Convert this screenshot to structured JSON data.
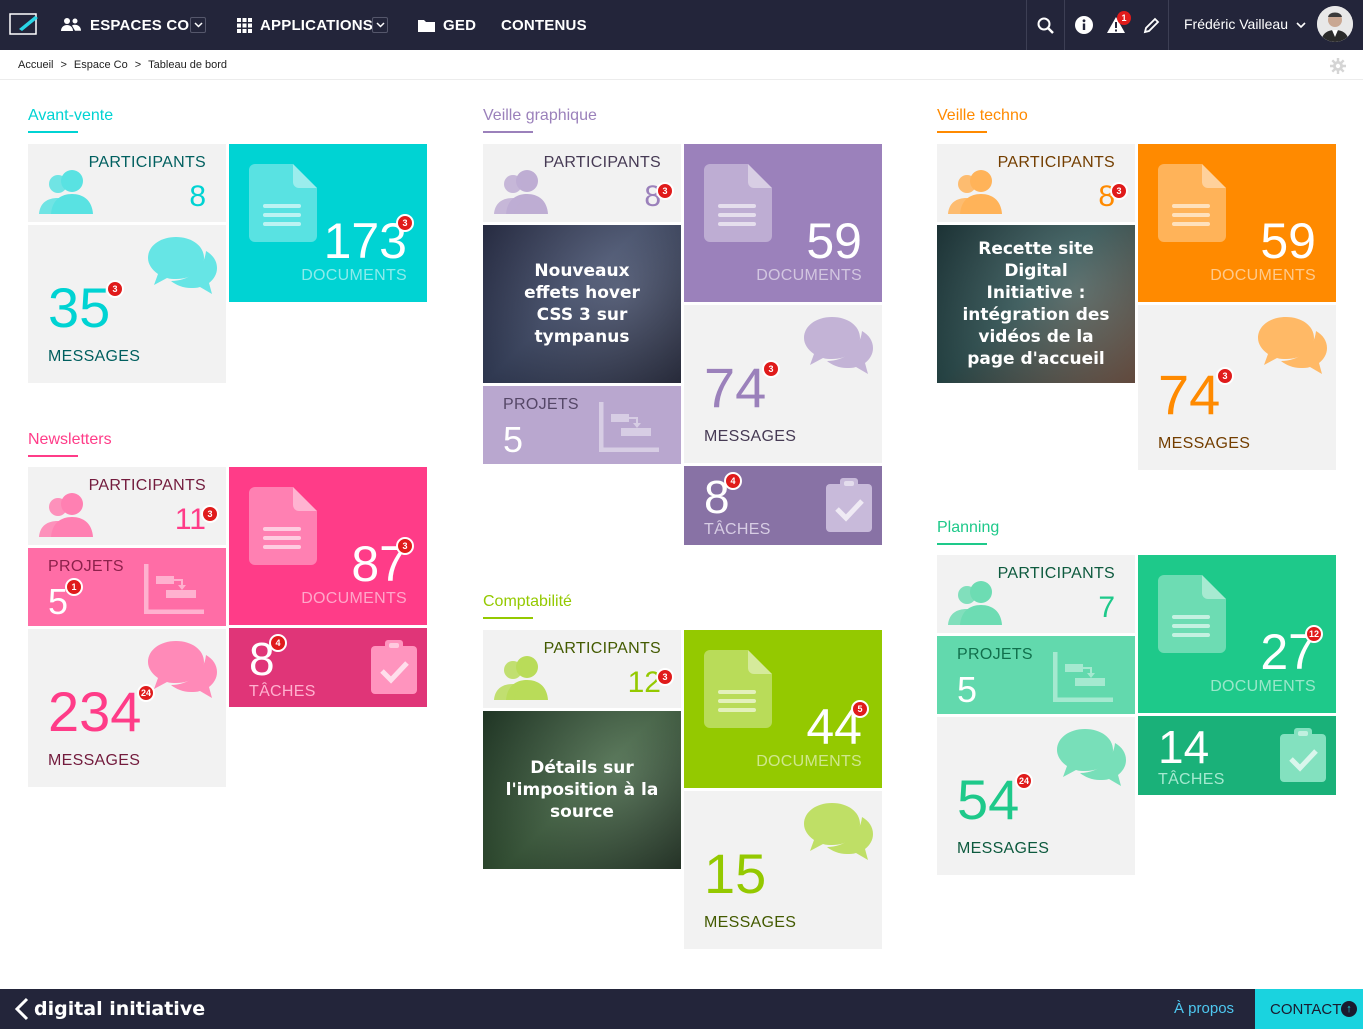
{
  "header": {
    "nav": [
      "ESPACES CO",
      "APPLICATIONS",
      "GED",
      "CONTENUS"
    ],
    "alert_count": "1",
    "user_name": "Frédéric Vailleau"
  },
  "breadcrumb": [
    "Accueil",
    "Espace Co",
    "Tableau de bord"
  ],
  "labels": {
    "participants": "PARTICIPANTS",
    "documents": "DOCUMENTS",
    "messages": "MESSAGES",
    "projets": "PROJETS",
    "taches": "TÂCHES"
  },
  "spaces": {
    "avant_vente": {
      "title": "Avant-vente",
      "color": "#00d3d3",
      "participants": "8",
      "documents": "173",
      "documents_badge": "3",
      "messages": "35",
      "messages_badge": "3"
    },
    "newsletters": {
      "title": "Newsletters",
      "color": "#ff3c88",
      "participants": "11",
      "participants_badge": "3",
      "projets": "5",
      "projets_badge": "1",
      "documents": "87",
      "documents_badge": "3",
      "taches": "8",
      "taches_badge": "4",
      "messages": "234",
      "messages_badge": "24"
    },
    "veille_graphique": {
      "title": "Veille graphique",
      "color": "#9b81bb",
      "participants": "8",
      "participants_badge": "3",
      "news": "Nouveaux effets hover CSS 3 sur tympanus",
      "projets": "5",
      "documents": "59",
      "messages": "74",
      "messages_badge": "3",
      "taches": "8",
      "taches_badge": "4"
    },
    "comptabilite": {
      "title": "Comptabilité",
      "color": "#94c900",
      "participants": "12",
      "participants_badge": "3",
      "news": "Détails sur l'imposition à la source",
      "documents": "44",
      "documents_badge": "5",
      "messages": "15"
    },
    "veille_techno": {
      "title": "Veille techno",
      "color": "#ff8a00",
      "participants": "8",
      "participants_badge": "3",
      "news": "Recette site Digital Initiative : intégration des vidéos de la page d'accueil",
      "documents": "59",
      "messages": "74",
      "messages_badge": "3"
    },
    "planning": {
      "title": "Planning",
      "color": "#1ec98a",
      "participants": "7",
      "projets": "5",
      "documents": "27",
      "documents_badge": "12",
      "taches": "14",
      "messages": "54",
      "messages_badge": "24"
    }
  },
  "footer": {
    "logo": "digital initiative",
    "apropos": "À propos",
    "contact": "CONTACT"
  }
}
